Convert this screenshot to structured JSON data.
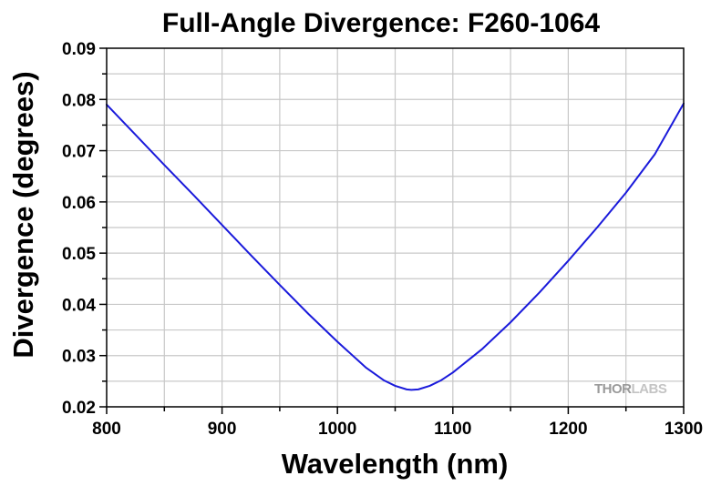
{
  "chart_data": {
    "type": "line",
    "title": "Full-Angle Divergence: F260-1064",
    "xlabel": "Wavelength (nm)",
    "ylabel": "Divergence (degrees)",
    "xlim": [
      800,
      1300
    ],
    "ylim": [
      0.02,
      0.09
    ],
    "x_ticks": [
      800,
      900,
      1000,
      1100,
      1200,
      1300
    ],
    "x_tick_labels": [
      "800",
      "900",
      "1000",
      "1100",
      "1200",
      "1300"
    ],
    "y_ticks": [
      0.02,
      0.03,
      0.04,
      0.05,
      0.06,
      0.07,
      0.08,
      0.09
    ],
    "y_tick_labels": [
      "0.02",
      "0.03",
      "0.04",
      "0.05",
      "0.06",
      "0.07",
      "0.08",
      "0.09"
    ],
    "grid": true,
    "series": [
      {
        "color": "#1a1adb",
        "x": [
          800,
          825,
          850,
          875,
          900,
          925,
          950,
          975,
          1000,
          1025,
          1040,
          1050,
          1060,
          1064,
          1070,
          1080,
          1090,
          1100,
          1125,
          1150,
          1175,
          1200,
          1225,
          1250,
          1275,
          1300
        ],
        "y": [
          0.079,
          0.0731,
          0.0672,
          0.0614,
          0.0555,
          0.0496,
          0.0438,
          0.0381,
          0.0327,
          0.0276,
          0.0252,
          0.0241,
          0.0234,
          0.0233,
          0.0234,
          0.0241,
          0.0252,
          0.0267,
          0.0312,
          0.0365,
          0.0423,
          0.0485,
          0.055,
          0.0618,
          0.0693,
          0.0792
        ]
      }
    ]
  },
  "watermark": {
    "text_part1": "THOR",
    "text_part2": "LABS",
    "colors": {
      "part1": "#9a9a9a",
      "part2": "#c4c4c4"
    }
  },
  "colors": {
    "background": "#ffffff",
    "grid": "#c8c8c8",
    "axis": "#000000",
    "line": "#1a1adb"
  }
}
